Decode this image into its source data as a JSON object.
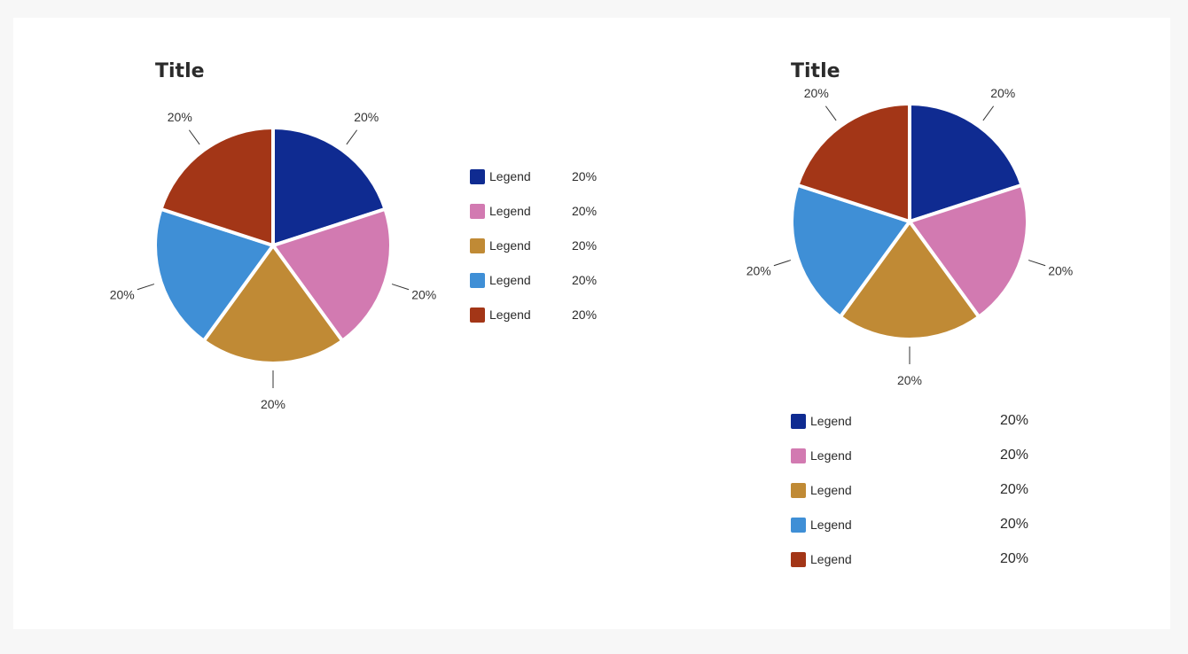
{
  "colors": {
    "background": "#f7f7f7",
    "card": "#ffffff",
    "slice_colors": [
      "#0f2b91",
      "#d27ab1",
      "#c08a35",
      "#3f8fd6",
      "#a33617"
    ]
  },
  "chart_data": [
    {
      "type": "pie",
      "title": "Title",
      "categories": [
        "Legend",
        "Legend",
        "Legend",
        "Legend",
        "Legend"
      ],
      "values": [
        20,
        20,
        20,
        20,
        20
      ],
      "slice_labels": [
        "20%",
        "20%",
        "20%",
        "20%",
        "20%"
      ],
      "legend": {
        "placement": "right",
        "entries": [
          {
            "label": "Legend",
            "value": "20%"
          },
          {
            "label": "Legend",
            "value": "20%"
          },
          {
            "label": "Legend",
            "value": "20%"
          },
          {
            "label": "Legend",
            "value": "20%"
          },
          {
            "label": "Legend",
            "value": "20%"
          }
        ]
      }
    },
    {
      "type": "pie",
      "title": "Title",
      "categories": [
        "Legend",
        "Legend",
        "Legend",
        "Legend",
        "Legend"
      ],
      "values": [
        20,
        20,
        20,
        20,
        20
      ],
      "slice_labels": [
        "20%",
        "20%",
        "20%",
        "20%",
        "20%"
      ],
      "legend": {
        "placement": "bottom",
        "entries": [
          {
            "label": "Legend",
            "value": "20%"
          },
          {
            "label": "Legend",
            "value": "20%"
          },
          {
            "label": "Legend",
            "value": "20%"
          },
          {
            "label": "Legend",
            "value": "20%"
          },
          {
            "label": "Legend",
            "value": "20%"
          }
        ]
      }
    }
  ]
}
